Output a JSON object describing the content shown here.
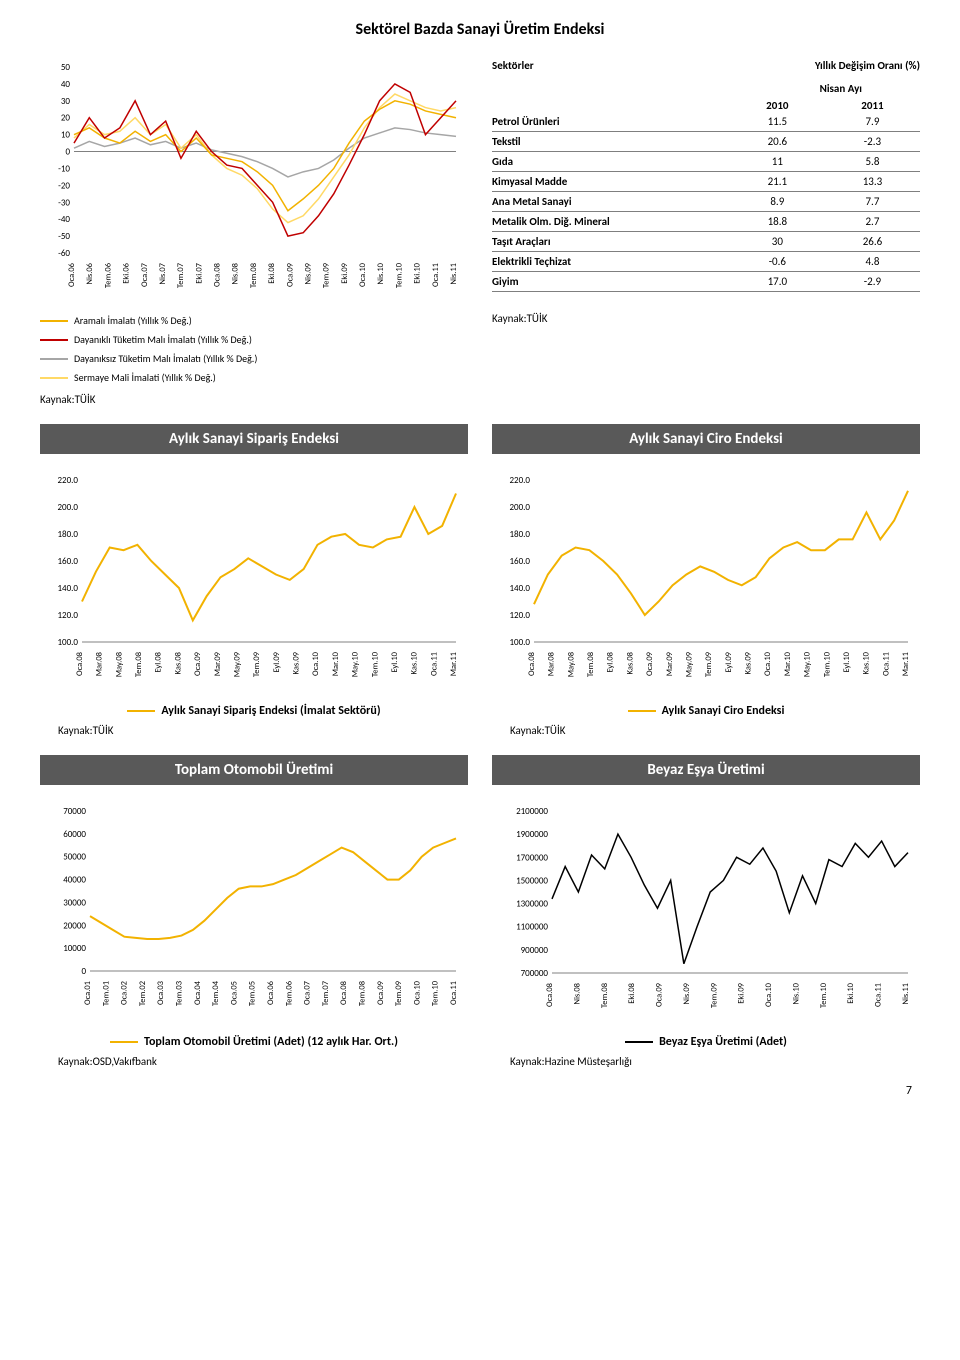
{
  "page_number": "7",
  "main_title": "Sektörel Bazda Sanayi Üretim Endeksi",
  "chart1": {
    "type": "line",
    "ylim": [
      -60,
      50
    ],
    "ytick_step": 10,
    "x_labels": [
      "Oca.06",
      "Nis.06",
      "Tem.06",
      "Eki.06",
      "Oca.07",
      "Nis.07",
      "Tem.07",
      "Eki.07",
      "Oca.08",
      "Nis.08",
      "Tem.08",
      "Eki.08",
      "Oca.09",
      "Nis.09",
      "Tem.09",
      "Eki.09",
      "Oca.10",
      "Nis.10",
      "Tem.10",
      "Eki.10",
      "Oca.11",
      "Nis.11"
    ],
    "series": {
      "aramali": {
        "label": "Aramalı İmalatı (Yıllık % Değ.)",
        "color": "#f2b200",
        "values": [
          10,
          14,
          8,
          5,
          12,
          6,
          10,
          0,
          8,
          -2,
          -4,
          -6,
          -12,
          -20,
          -35,
          -28,
          -20,
          -10,
          5,
          18,
          25,
          30,
          28,
          24,
          22,
          20
        ]
      },
      "dayanikli": {
        "label": "Dayanıklı Tüketim Malı İmalatı (Yıllık % Değ.)",
        "color": "#c00000",
        "values": [
          5,
          20,
          8,
          14,
          30,
          10,
          18,
          -4,
          12,
          0,
          -8,
          -10,
          -20,
          -30,
          -50,
          -48,
          -38,
          -25,
          -8,
          10,
          30,
          40,
          35,
          10,
          20,
          30
        ]
      },
      "dayaniksiz": {
        "label": "Dayanıksız Tüketim Malı İmalatı (Yıllık % Değ.)",
        "color": "#a6a6a6",
        "values": [
          2,
          6,
          3,
          5,
          8,
          4,
          6,
          2,
          5,
          1,
          -1,
          -3,
          -6,
          -10,
          -15,
          -12,
          -10,
          -5,
          2,
          8,
          11,
          14,
          13,
          11,
          10,
          9
        ]
      },
      "sermaye": {
        "label": "Sermaye Mali İmalati (Yıllık % Değ.)",
        "color": "#ffd966",
        "values": [
          8,
          16,
          10,
          12,
          20,
          10,
          16,
          2,
          10,
          -2,
          -10,
          -14,
          -22,
          -34,
          -42,
          -38,
          -28,
          -15,
          -2,
          14,
          26,
          34,
          30,
          26,
          24,
          26
        ]
      }
    },
    "axis_color": "#808080",
    "grid_color": "#d9d9d9",
    "background": "#ffffff",
    "label_fontsize": 8,
    "line_width": 1.5
  },
  "sector_table": {
    "header_sect": "Sektörler",
    "header_rate": "Yıllık Değişim Oranı (%)",
    "sub_header": "Nisan Ayı",
    "years": [
      "2010",
      "2011"
    ],
    "rows": [
      {
        "lbl": "Petrol Ürünleri",
        "v1": "11.5",
        "v2": "7.9"
      },
      {
        "lbl": "Tekstil",
        "v1": "20.6",
        "v2": "-2.3"
      },
      {
        "lbl": "Gıda",
        "v1": "11",
        "v2": "5.8"
      },
      {
        "lbl": "Kimyasal Madde",
        "v1": "21.1",
        "v2": "13.3"
      },
      {
        "lbl": "Ana Metal Sanayi",
        "v1": "8.9",
        "v2": "7.7"
      },
      {
        "lbl": "Metalik Olm. Diğ. Mineral",
        "v1": "18.8",
        "v2": "2.7"
      },
      {
        "lbl": "Taşıt Araçları",
        "v1": "30",
        "v2": "26.6"
      },
      {
        "lbl": "Elektrikli Teçhizat",
        "v1": "-0.6",
        "v2": "4.8"
      },
      {
        "lbl": "Giyim",
        "v1": "17.0",
        "v2": "-2.9"
      }
    ]
  },
  "source_tuik": "Kaynak:TÜİK",
  "source_osd": "Kaynak:OSD,Vakıfbank",
  "source_hazine": "Kaynak:Hazine Müsteşarlığı",
  "titles": {
    "siparis": "Aylık Sanayi Sipariş Endeksi",
    "ciro": "Aylık Sanayi Ciro Endeksi",
    "otomobil": "Toplam Otomobil Üretimi",
    "beyaz": "Beyaz Eşya Üretimi"
  },
  "chart_siparis": {
    "type": "line",
    "ylim": [
      100,
      220
    ],
    "ytick_step": 20,
    "x_labels": [
      "Oca.08",
      "Mar.08",
      "May.08",
      "Tem.08",
      "Eyl.08",
      "Kas.08",
      "Oca.09",
      "Mar.09",
      "May.09",
      "Tem.09",
      "Eyl.09",
      "Kas.09",
      "Oca.10",
      "Mar.10",
      "May.10",
      "Tem.10",
      "Eyl.10",
      "Kas.10",
      "Oca.11",
      "Mar.11"
    ],
    "legend": "Aylık Sanayi Sipariş Endeksi (İmalat Sektörü)",
    "color": "#f2b200",
    "values": [
      130,
      152,
      170,
      168,
      172,
      160,
      150,
      140,
      116,
      134,
      148,
      154,
      162,
      156,
      150,
      146,
      154,
      172,
      178,
      180,
      172,
      170,
      176,
      178,
      200,
      180,
      186,
      210
    ],
    "background": "#ffffff",
    "line_width": 2
  },
  "chart_ciro": {
    "type": "line",
    "ylim": [
      100,
      220
    ],
    "ytick_step": 20,
    "x_labels": [
      "Oca.08",
      "Mar.08",
      "May.08",
      "Tem.08",
      "Eyl.08",
      "Kas.08",
      "Oca.09",
      "Mar.09",
      "May.09",
      "Tem.09",
      "Eyl.09",
      "Kas.09",
      "Oca.10",
      "Mar.10",
      "May.10",
      "Tem.10",
      "Eyl.10",
      "Kas.10",
      "Oca.11",
      "Mar.11"
    ],
    "legend": "Aylık Sanayi Ciro Endeksi",
    "color": "#f2b200",
    "values": [
      128,
      150,
      164,
      170,
      168,
      160,
      150,
      136,
      120,
      130,
      142,
      150,
      156,
      152,
      146,
      142,
      148,
      162,
      170,
      174,
      168,
      168,
      176,
      176,
      196,
      176,
      190,
      212
    ],
    "background": "#ffffff",
    "line_width": 2
  },
  "chart_oto": {
    "type": "line",
    "ylim": [
      0,
      70000
    ],
    "ytick_step": 10000,
    "x_labels": [
      "Oca.01",
      "Tem.01",
      "Oca.02",
      "Tem.02",
      "Oca.03",
      "Tem.03",
      "Oca.04",
      "Tem.04",
      "Oca.05",
      "Tem.05",
      "Oca.06",
      "Tem.06",
      "Oca.07",
      "Tem.07",
      "Oca.08",
      "Tem.08",
      "Oca.09",
      "Tem.09",
      "Oca.10",
      "Tem.10",
      "Oca.11"
    ],
    "legend": "Toplam Otomobil Üretimi  (Adet) (12 aylık Har. Ort.)",
    "color": "#f2b200",
    "values": [
      24000,
      21000,
      18000,
      15000,
      14500,
      14000,
      14000,
      14500,
      15500,
      18000,
      22000,
      27000,
      32000,
      36000,
      37000,
      37000,
      38000,
      40000,
      42000,
      45000,
      48000,
      51000,
      54000,
      52000,
      48000,
      44000,
      40000,
      40000,
      44000,
      50000,
      54000,
      56000,
      58000
    ],
    "background": "#ffffff",
    "line_width": 2
  },
  "chart_beyaz": {
    "type": "line",
    "ylim": [
      700000,
      2100000
    ],
    "ytick_step": 200000,
    "x_labels": [
      "Oca.08",
      "Nis.08",
      "Tem.08",
      "Eki.08",
      "Oca.09",
      "Nis.09",
      "Tem.09",
      "Eki.09",
      "Oca.10",
      "Nis.10",
      "Tem.10",
      "Eki.10",
      "Oca.11",
      "Nis.11"
    ],
    "legend": "Beyaz Eşya Üretimi (Adet)",
    "color": "#000000",
    "values": [
      1340000,
      1620000,
      1400000,
      1720000,
      1600000,
      1900000,
      1700000,
      1460000,
      1260000,
      1500000,
      780000,
      1100000,
      1400000,
      1500000,
      1700000,
      1640000,
      1780000,
      1580000,
      1220000,
      1540000,
      1300000,
      1680000,
      1620000,
      1820000,
      1700000,
      1840000,
      1620000,
      1740000
    ],
    "background": "#ffffff",
    "line_width": 1.5
  }
}
